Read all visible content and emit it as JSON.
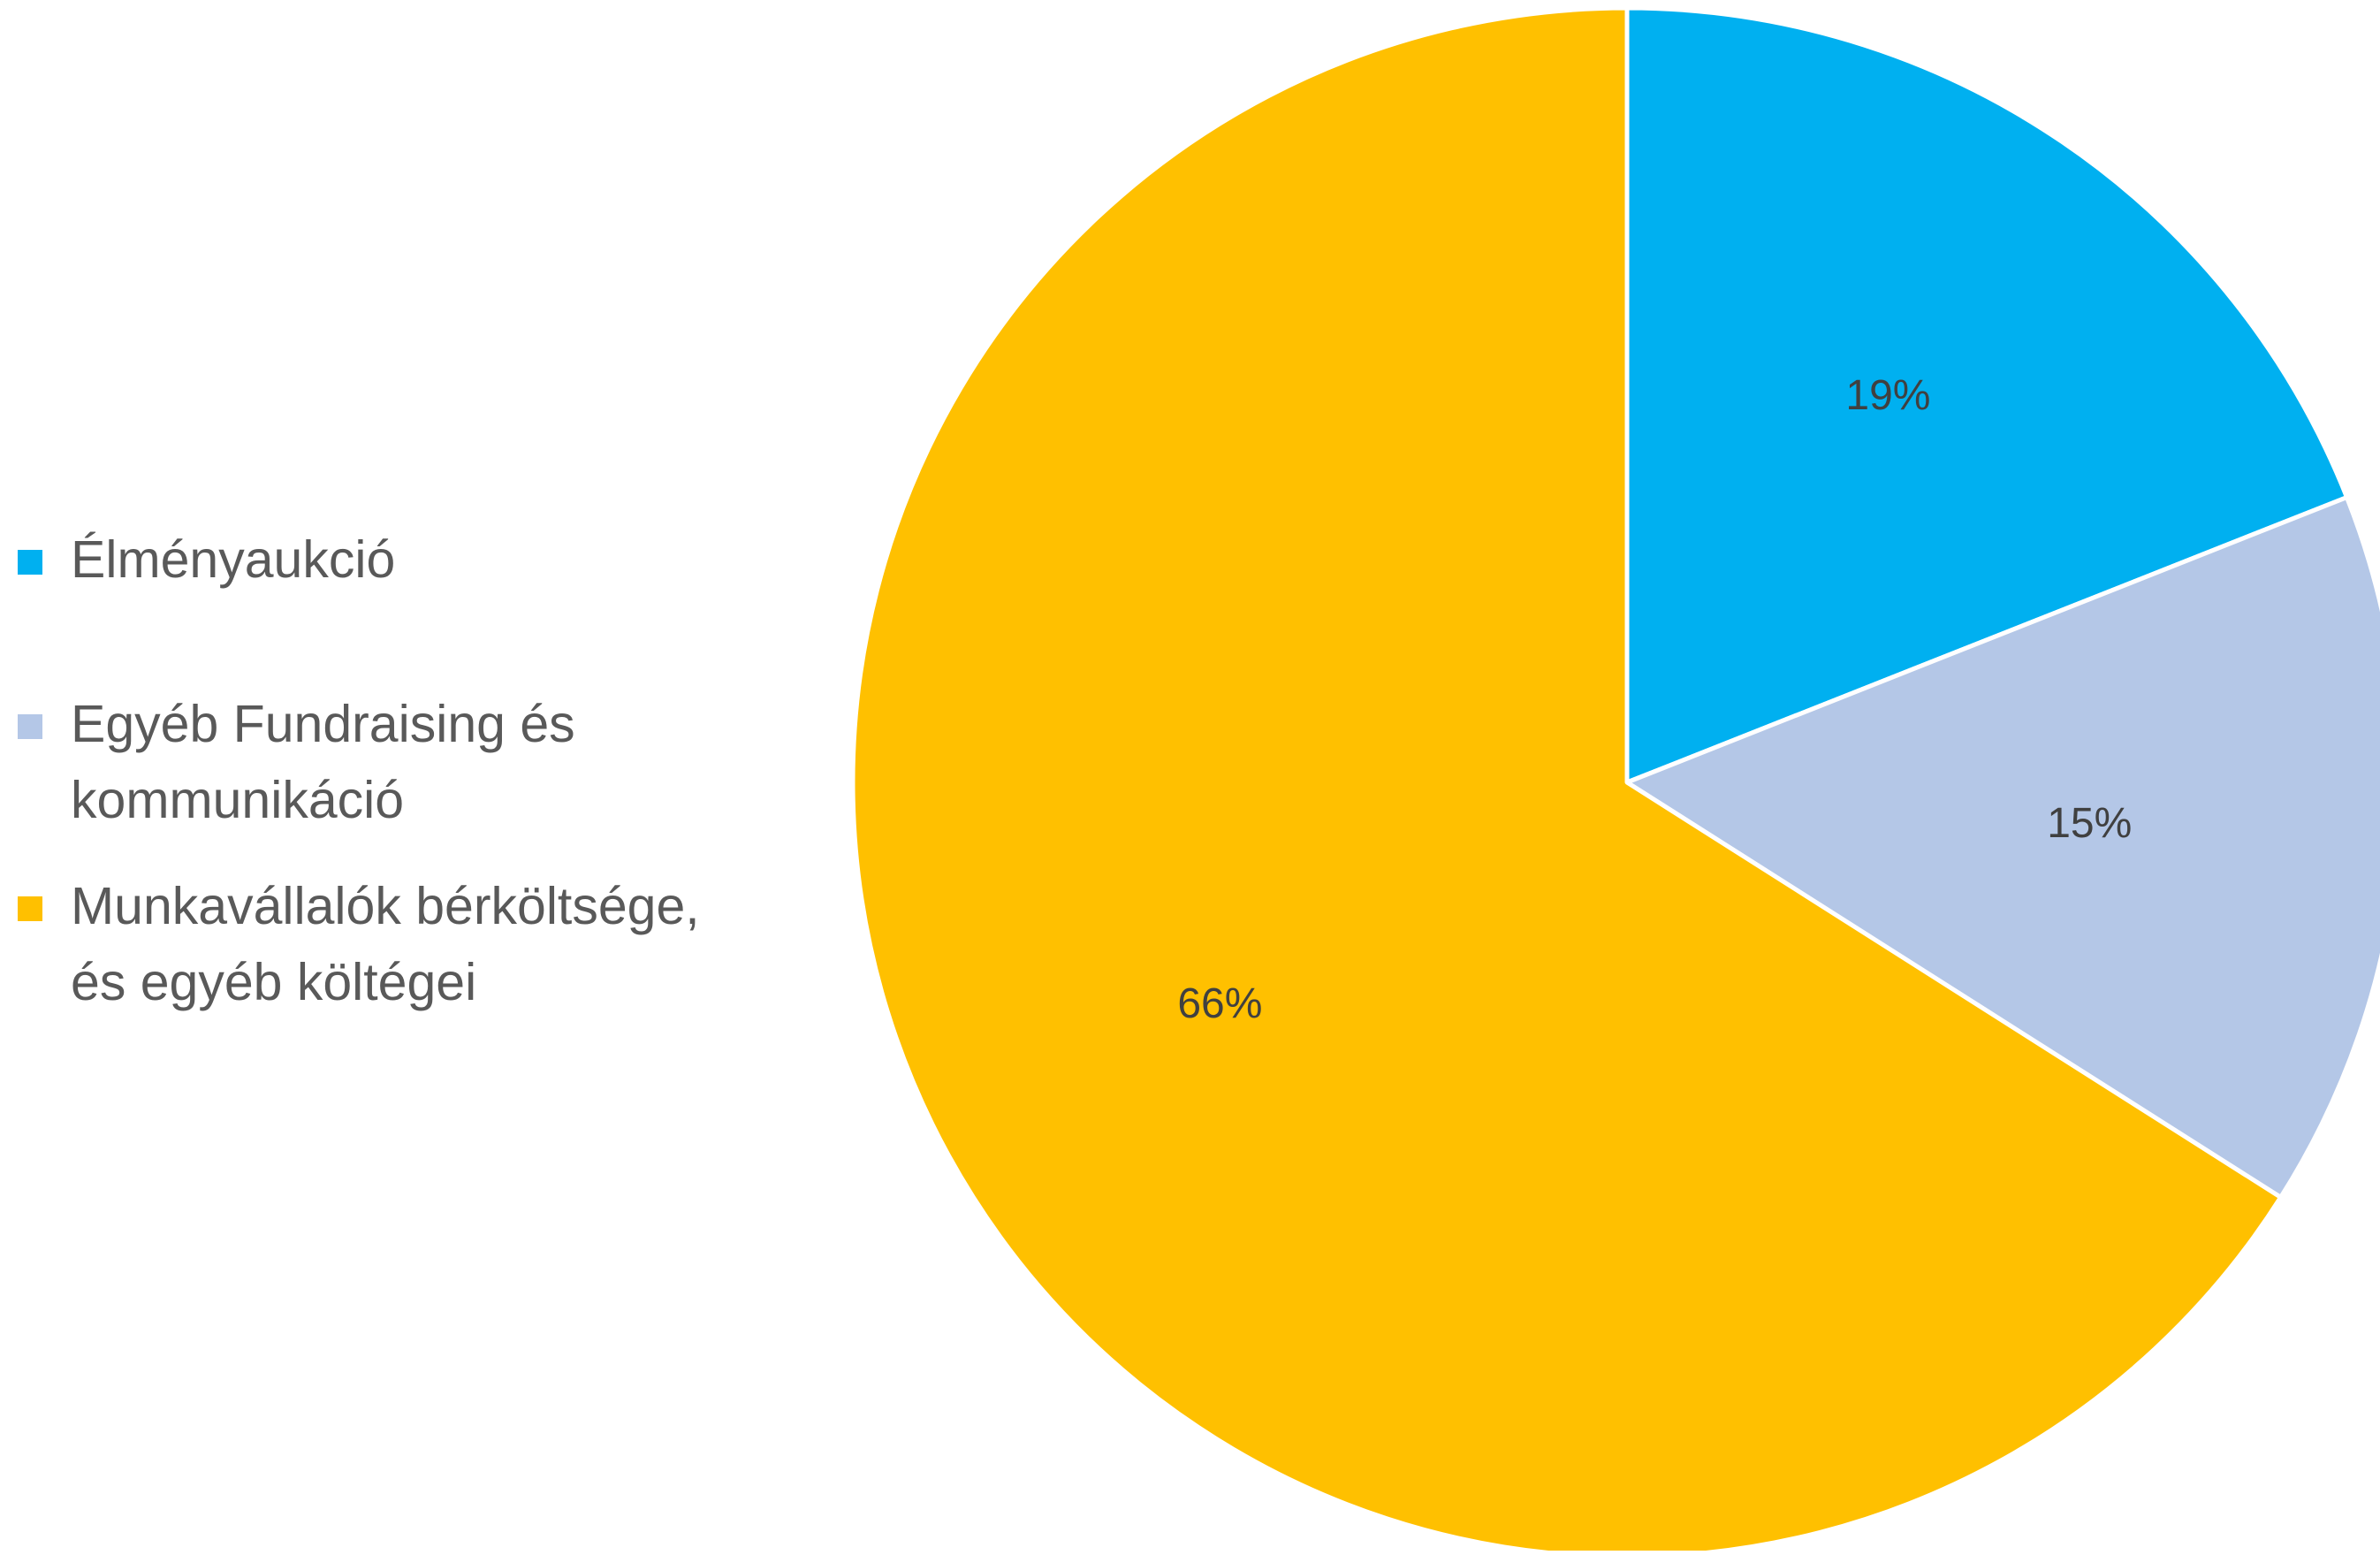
{
  "chart_data": {
    "type": "pie",
    "title": "",
    "start_angle_deg": 0,
    "direction": "clockwise",
    "legend_position": "left",
    "categories": [
      "Élményaukció",
      "Egyéb Fundraising és kommunikáció",
      "Munkavállalók bérköltsége, és egyéb költégei"
    ],
    "legend_lines": [
      [
        "Élményaukció"
      ],
      [
        "Egyéb Fundraising és",
        "kommunikáció"
      ],
      [
        "Munkavállalók bérköltsége,",
        "és egyéb költégei"
      ]
    ],
    "values": [
      19,
      15,
      66
    ],
    "data_labels": [
      "19%",
      "15%",
      "66%"
    ],
    "colors": [
      "#00B0F0",
      "#B4C7E7",
      "#FFC000"
    ],
    "slice_border_color": "#FFFFFF",
    "label_color": "#404040"
  }
}
